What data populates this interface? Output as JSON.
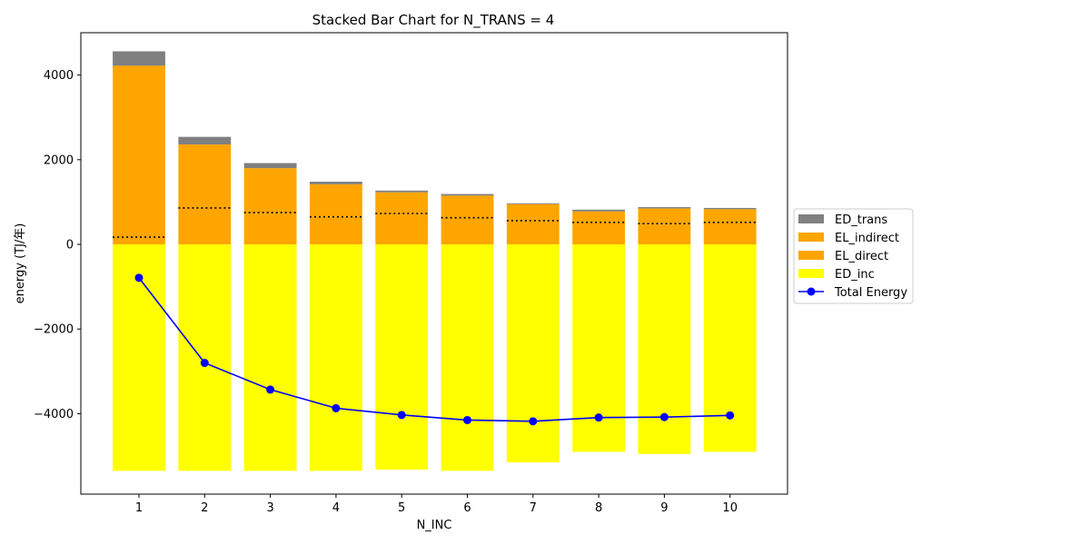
{
  "chart_data": {
    "type": "bar",
    "stacked": true,
    "title": "Stacked Bar Chart for N_TRANS = 4",
    "xlabel": "N_INC",
    "ylabel": "energy (TJ/年)",
    "categories": [
      "1",
      "2",
      "3",
      "4",
      "5",
      "6",
      "7",
      "8",
      "9",
      "10"
    ],
    "ylim": [
      -5900,
      5000
    ],
    "yticks": [
      -4000,
      -2000,
      0,
      2000,
      4000
    ],
    "ytick_labels": [
      "−4000",
      "−2000",
      "0",
      "2000",
      "4000"
    ],
    "legend_position": "center-right",
    "series": [
      {
        "name": "ED_inc",
        "kind": "bar",
        "color": "#ffff00",
        "values": [
          -5350,
          -5350,
          -5350,
          -5350,
          -5320,
          -5350,
          -5150,
          -4900,
          -4950,
          -4900
        ]
      },
      {
        "name": "EL_direct",
        "kind": "bar",
        "color": "#ffa500",
        "values": [
          170,
          860,
          750,
          650,
          730,
          630,
          560,
          520,
          490,
          520
        ]
      },
      {
        "name": "EL_indirect",
        "kind": "bar",
        "color": "#ffa500",
        "values": [
          4050,
          1500,
          1050,
          770,
          500,
          520,
          390,
          260,
          360,
          310
        ]
      },
      {
        "name": "ED_trans",
        "kind": "bar",
        "color": "#808080",
        "values": [
          340,
          180,
          120,
          60,
          40,
          40,
          20,
          40,
          30,
          30
        ]
      },
      {
        "name": "Total Energy",
        "kind": "line",
        "color": "#0000ff",
        "values": [
          -790,
          -2800,
          -3430,
          -3870,
          -4030,
          -4150,
          -4180,
          -4090,
          -4080,
          -4040
        ]
      }
    ]
  }
}
